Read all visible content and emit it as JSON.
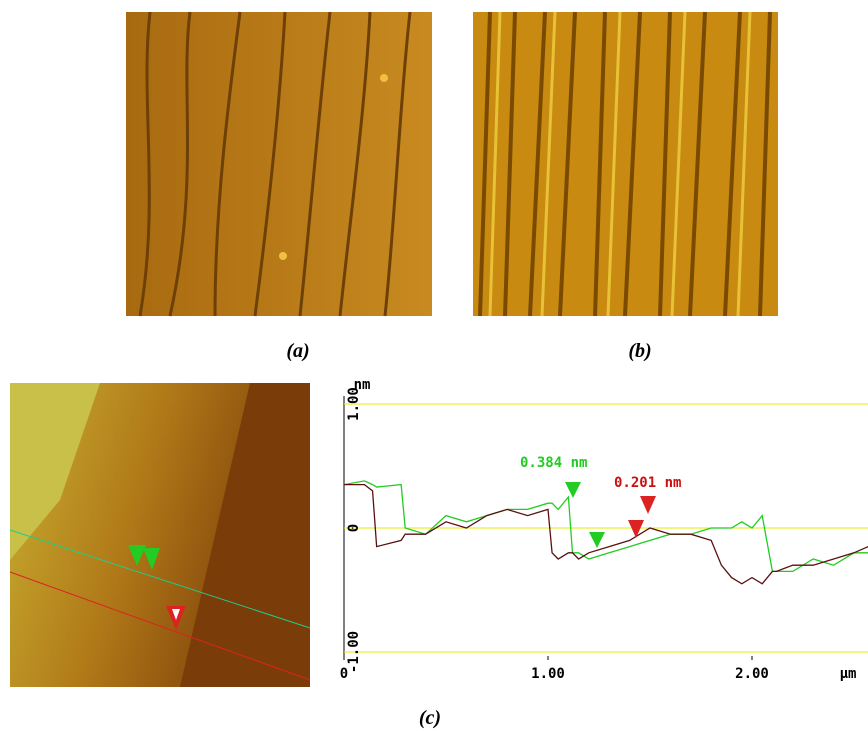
{
  "panel_labels": [
    "(a)",
    "(b)",
    "(c)"
  ],
  "chart_data": {
    "type": "line",
    "y_unit": "nm",
    "x_unit": "μm",
    "annotations": [
      "0.384 nm",
      "0.201 nm"
    ],
    "xlim": [
      0,
      2.57
    ],
    "ylim": [
      -1,
      1
    ],
    "xticks": [
      0,
      {
        "value": 1,
        "label": "1.00"
      },
      {
        "value": 2,
        "label": "2.00"
      }
    ],
    "yticks": [
      {
        "value": -1,
        "label": "-1.00"
      },
      0,
      {
        "value": 1,
        "label": "1.00"
      }
    ],
    "grid": true,
    "x": [
      0,
      0.1,
      0.14,
      0.16,
      0.28,
      0.3,
      0.4,
      0.5,
      0.6,
      0.7,
      0.8,
      0.9,
      1.0,
      1.02,
      1.05,
      1.1,
      1.12,
      1.15,
      1.2,
      1.3,
      1.4,
      1.5,
      1.6,
      1.7,
      1.8,
      1.85,
      1.9,
      1.95,
      2.0,
      2.05,
      2.1,
      2.12,
      2.2,
      2.3,
      2.4,
      2.5,
      2.57
    ],
    "series": [
      {
        "color": "#22cc22",
        "values": [
          0.35,
          0.38,
          0.35,
          0.33,
          0.35,
          0.0,
          -0.05,
          0.1,
          0.05,
          0.1,
          0.15,
          0.15,
          0.2,
          0.2,
          0.15,
          0.25,
          -0.2,
          -0.2,
          -0.25,
          -0.2,
          -0.15,
          -0.1,
          -0.05,
          -0.05,
          0.0,
          0.0,
          0.0,
          0.05,
          0.0,
          0.1,
          -0.35,
          -0.35,
          -0.35,
          -0.25,
          -0.3,
          -0.2,
          -0.2
        ]
      },
      {
        "color": "#5a1010",
        "values": [
          0.35,
          0.35,
          0.3,
          -0.15,
          -0.1,
          -0.05,
          -0.05,
          0.05,
          0.0,
          0.1,
          0.15,
          0.1,
          0.15,
          -0.2,
          -0.25,
          -0.2,
          -0.2,
          -0.25,
          -0.2,
          -0.15,
          -0.1,
          0.0,
          -0.05,
          -0.05,
          -0.1,
          -0.3,
          -0.4,
          -0.45,
          -0.4,
          -0.45,
          -0.35,
          -0.35,
          -0.3,
          -0.3,
          -0.25,
          -0.2,
          -0.15
        ]
      }
    ]
  }
}
